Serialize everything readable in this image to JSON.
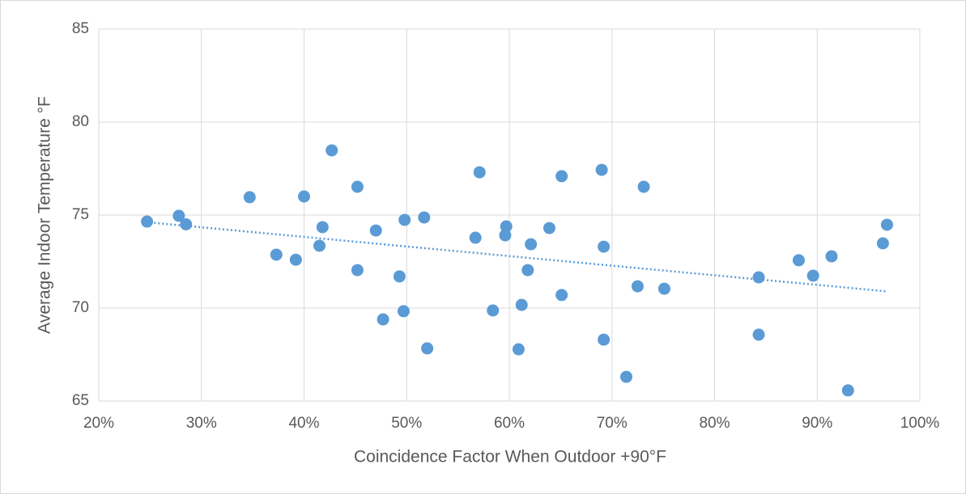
{
  "chart_data": {
    "type": "scatter",
    "x_label": "Coincidence Factor When Outdoor +90°F",
    "y_label": "Average Indoor Temperature °F",
    "xlim": [
      20,
      100
    ],
    "xticks": [
      {
        "value": 20,
        "label": "20%"
      },
      {
        "value": 30,
        "label": "30%"
      },
      {
        "value": 40,
        "label": "40%"
      },
      {
        "value": 50,
        "label": "50%"
      },
      {
        "value": 60,
        "label": "60%"
      },
      {
        "value": 70,
        "label": "70%"
      },
      {
        "value": 80,
        "label": "80%"
      },
      {
        "value": 90,
        "label": "90%"
      },
      {
        "value": 100,
        "label": "100%"
      }
    ],
    "ylim": [
      65,
      85
    ],
    "yticks": [
      65,
      70,
      75,
      80,
      85
    ],
    "grid": true,
    "series": [
      {
        "color": "#5b9bd5",
        "x": [
          24.7,
          27.8,
          28.5,
          34.7,
          37.3,
          39.2,
          40.0,
          41.5,
          41.8,
          42.7,
          45.2,
          45.2,
          47.0,
          47.7,
          49.3,
          49.7,
          49.8,
          51.7,
          52.0,
          56.7,
          57.1,
          58.4,
          59.6,
          59.7,
          60.9,
          61.2,
          61.8,
          62.1,
          63.9,
          65.1,
          65.1,
          69.0,
          69.2,
          69.2,
          71.4,
          72.5,
          73.1,
          75.1,
          84.3,
          84.3,
          88.2,
          89.6,
          91.4,
          93.0,
          96.4,
          96.8
        ],
        "values": [
          74.65,
          74.96,
          74.5,
          75.96,
          72.87,
          72.6,
          76.0,
          73.35,
          74.35,
          78.48,
          76.52,
          72.04,
          74.17,
          69.39,
          71.7,
          69.83,
          74.74,
          74.87,
          67.83,
          73.78,
          77.3,
          69.87,
          73.91,
          74.39,
          67.78,
          70.17,
          72.04,
          73.43,
          74.3,
          77.09,
          70.7,
          77.43,
          68.3,
          73.3,
          66.3,
          71.17,
          76.52,
          71.04,
          71.65,
          68.57,
          72.57,
          71.74,
          72.78,
          65.57,
          73.48,
          74.48
        ]
      }
    ],
    "trendline": {
      "color": "#5b9bd5",
      "x": [
        25,
        96.7
      ],
      "y": [
        74.6,
        70.9
      ]
    }
  }
}
